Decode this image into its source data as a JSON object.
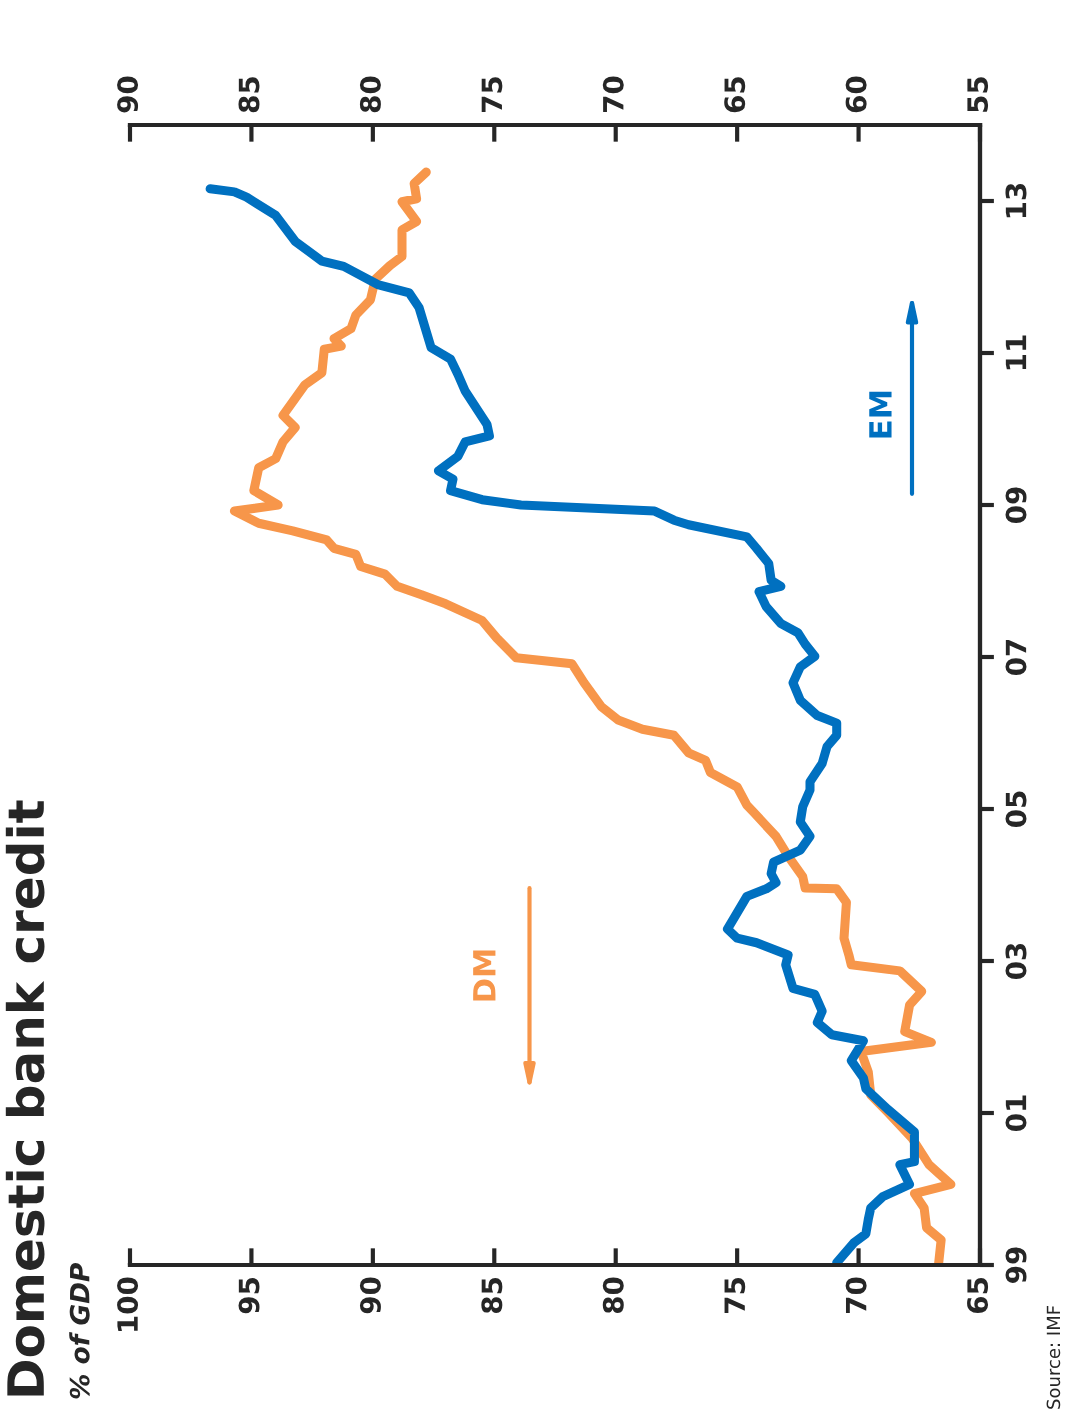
{
  "chart_data": {
    "type": "line",
    "title": "Domestic bank credit",
    "subtitle": "% of GDP",
    "annotations": [
      "Source: IMF"
    ],
    "ylim": [
      1999,
      2014
    ],
    "yticks": [
      {
        "value": 1999,
        "label": "99"
      },
      {
        "value": 2001,
        "label": "01"
      },
      {
        "value": 2003,
        "label": "03"
      },
      {
        "value": 2005,
        "label": "05"
      },
      {
        "value": 2007,
        "label": "07"
      },
      {
        "value": 2009,
        "label": "09"
      },
      {
        "value": 2011,
        "label": "11"
      },
      {
        "value": 2013,
        "label": "13"
      }
    ],
    "xlim": [
      100,
      65
    ],
    "xticks": [
      100,
      95,
      90,
      85,
      80,
      75,
      70,
      65
    ],
    "x2lim": [
      90,
      55
    ],
    "x2ticks": [
      90,
      85,
      80,
      75,
      70,
      65,
      60,
      55
    ],
    "series": [
      {
        "name": "DM",
        "color": "#f7964a",
        "values": [
          1999.03,
          1999.33,
          1999.49,
          1999.75,
          1999.94,
          2000.06,
          2000.32,
          2000.67,
          2001.01,
          2001.24,
          2001.54,
          2001.81,
          2001.93,
          2002.07,
          2002.42,
          2002.6,
          2002.87,
          2002.95,
          2003.08,
          2003.3,
          2003.77,
          2003.95,
          2003.96,
          2004.11,
          2004.38,
          2004.64,
          2004.95,
          2005.05,
          2005.29,
          2005.48,
          2005.64,
          2005.74,
          2005.97,
          2006.05,
          2006.17,
          2006.35,
          2006.66,
          2006.91,
          2006.99,
          2007.25,
          2007.48,
          2007.7,
          2007.82,
          2007.93,
          2008.09,
          2008.19,
          2008.35,
          2008.43,
          2008.54,
          2008.66,
          2008.76,
          2008.92,
          2009.0,
          2009.19,
          2009.49,
          2009.61,
          2009.83,
          2010.02,
          2010.18,
          2010.58,
          2010.74,
          2011.05,
          2011.09,
          2011.19,
          2011.32,
          2011.5,
          2011.7,
          2011.97,
          2012.15,
          2012.27,
          2012.62,
          2012.73,
          2012.99,
          2013.03,
          2013.23,
          2013.38
        ],
        "x": [
          66.7,
          66.6,
          67.2,
          67.3,
          67.7,
          66.2,
          67.1,
          67.8,
          68.8,
          69.5,
          69.6,
          69.9,
          67.0,
          68.1,
          67.9,
          67.4,
          68.3,
          70.3,
          70.4,
          70.6,
          70.5,
          70.9,
          72.2,
          72.3,
          72.9,
          73.4,
          74.3,
          74.6,
          75.0,
          76.1,
          76.3,
          77.0,
          77.6,
          78.9,
          79.9,
          80.6,
          81.3,
          81.8,
          84.1,
          84.9,
          85.5,
          87.0,
          88.0,
          89.0,
          89.5,
          90.5,
          90.7,
          91.6,
          91.9,
          93.3,
          94.7,
          95.7,
          93.9,
          94.9,
          94.7,
          94.0,
          93.7,
          93.2,
          93.7,
          92.8,
          92.1,
          92.0,
          91.3,
          91.6,
          90.9,
          90.7,
          90.1,
          89.9,
          89.3,
          88.8,
          88.8,
          88.2,
          88.8,
          88.2,
          88.3,
          87.8
        ]
      },
      {
        "name": "EM",
        "color": "#0070c0",
        "axis": "x2",
        "values": [
          1999.03,
          1999.29,
          1999.41,
          1999.6,
          1999.75,
          1999.9,
          2000.06,
          2000.32,
          2000.36,
          2000.75,
          2001.05,
          2001.32,
          2001.46,
          2001.69,
          2001.95,
          2002.03,
          2002.19,
          2002.34,
          2002.56,
          2002.64,
          2002.95,
          2003.08,
          2003.24,
          2003.3,
          2003.42,
          2003.58,
          2003.85,
          2003.95,
          2004.03,
          2004.15,
          2004.3,
          2004.46,
          2004.64,
          2004.83,
          2005.03,
          2005.25,
          2005.36,
          2005.6,
          2005.82,
          2005.97,
          2006.13,
          2006.23,
          2006.43,
          2006.66,
          2006.87,
          2007.01,
          2007.17,
          2007.32,
          2007.44,
          2007.66,
          2007.86,
          2007.93,
          2008.01,
          2008.23,
          2008.43,
          2008.58,
          2008.74,
          2008.8,
          2008.92,
          2009.0,
          2009.07,
          2009.19,
          2009.34,
          2009.45,
          2009.64,
          2009.83,
          2009.91,
          2010.06,
          2010.5,
          2010.72,
          2010.92,
          2011.07,
          2011.6,
          2011.79,
          2011.9,
          2012.14,
          2012.21,
          2012.47,
          2012.81,
          2013.05,
          2013.12,
          2013.16
        ],
        "x": [
          60.9,
          60.2,
          59.7,
          59.6,
          59.5,
          59.0,
          57.9,
          58.3,
          57.7,
          57.7,
          58.8,
          59.7,
          59.8,
          60.3,
          59.8,
          61.1,
          61.7,
          61.5,
          61.8,
          62.7,
          63.0,
          62.9,
          64.2,
          65.0,
          65.4,
          65.1,
          64.6,
          63.8,
          63.4,
          63.6,
          63.5,
          62.4,
          62.0,
          62.4,
          62.3,
          62.0,
          62.0,
          61.5,
          61.3,
          60.9,
          60.9,
          61.7,
          62.4,
          62.7,
          62.4,
          61.8,
          62.2,
          62.5,
          63.2,
          63.8,
          64.1,
          63.2,
          63.6,
          63.7,
          64.2,
          64.6,
          67.0,
          67.6,
          68.4,
          73.9,
          75.5,
          76.8,
          76.7,
          77.3,
          76.5,
          76.2,
          75.2,
          75.3,
          76.2,
          76.5,
          76.8,
          77.6,
          78.1,
          78.5,
          79.8,
          81.2,
          82.1,
          83.2,
          84.0,
          85.2,
          85.7,
          86.7
        ]
      }
    ]
  }
}
